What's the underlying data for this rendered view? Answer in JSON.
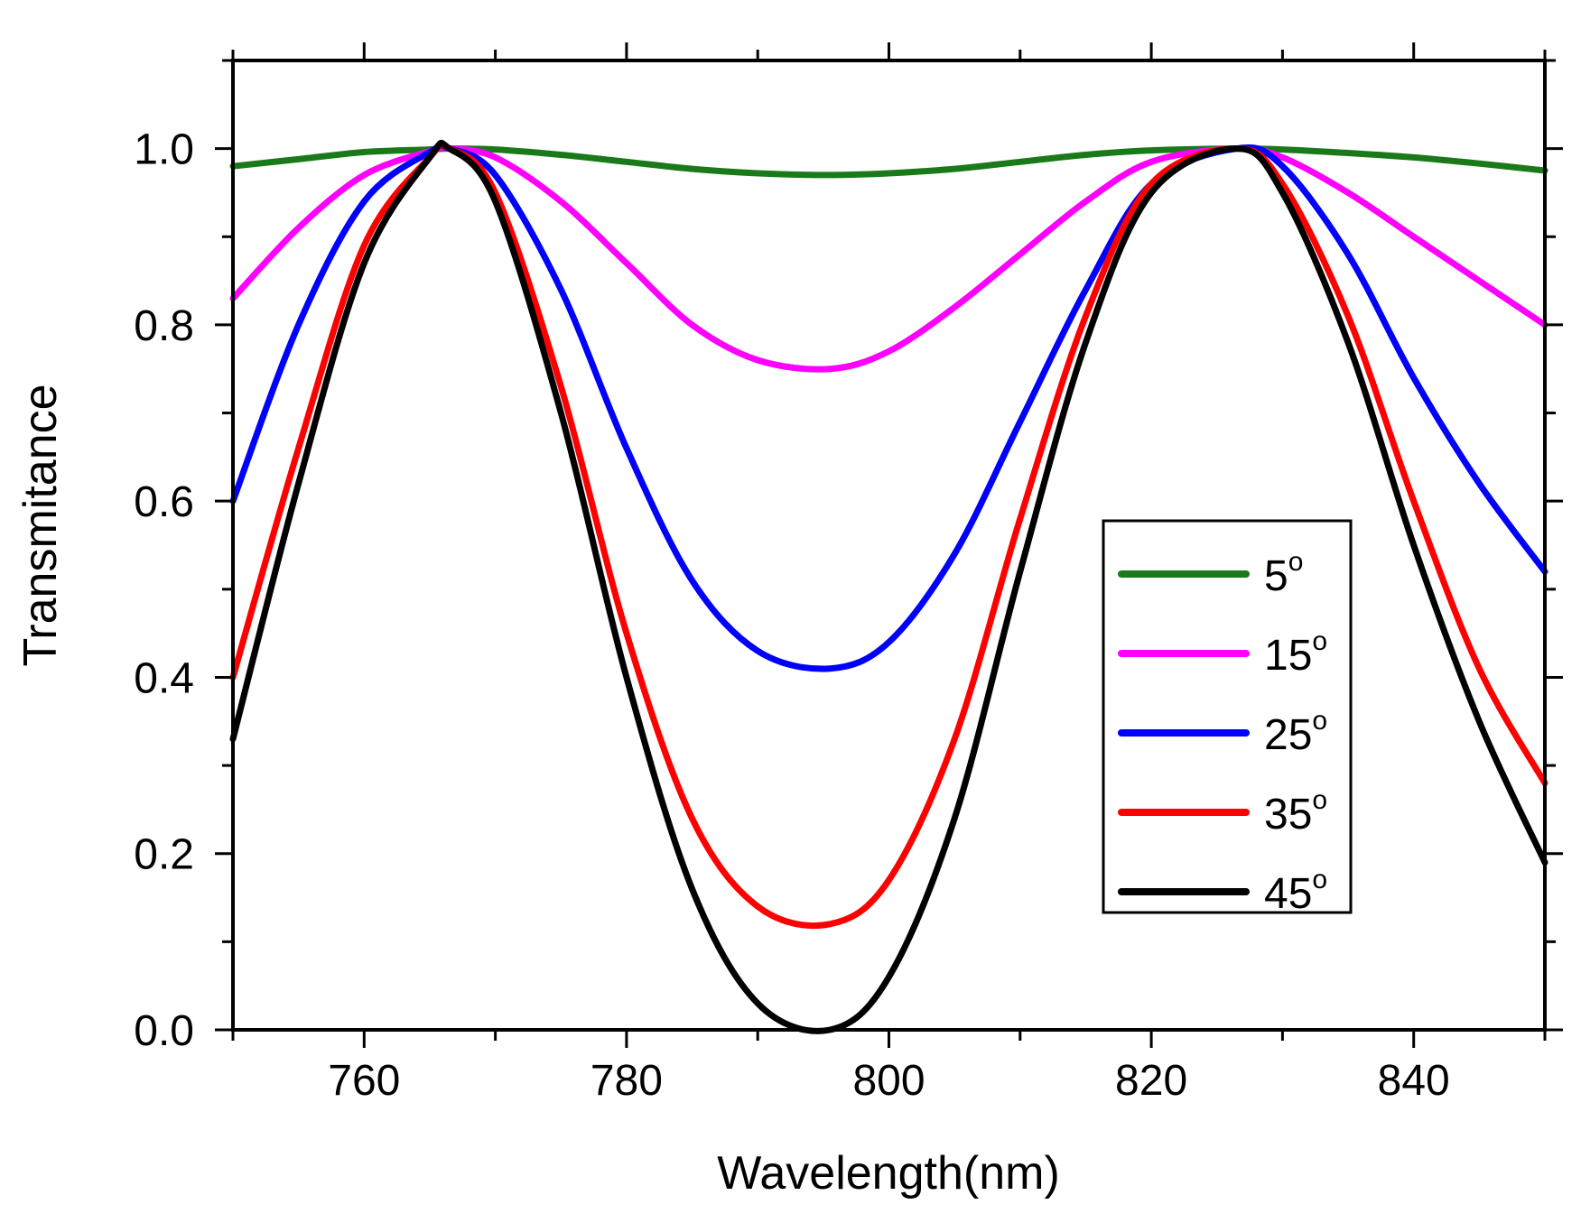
{
  "chart_data": {
    "type": "line",
    "title": "",
    "xlabel": "Wavelength(nm)",
    "ylabel": "Transmitance",
    "xlim": [
      750,
      850
    ],
    "ylim": [
      0.0,
      1.1
    ],
    "x_ticks": [
      760,
      780,
      800,
      820,
      840
    ],
    "x_tick_labels": [
      "760",
      "780",
      "800",
      "820",
      "840"
    ],
    "y_ticks": [
      0.0,
      0.2,
      0.4,
      0.6,
      0.8,
      1.0
    ],
    "y_tick_labels": [
      "0.0",
      "0.2",
      "0.4",
      "0.6",
      "0.8",
      "1.0"
    ],
    "grid": false,
    "legend_position": "right",
    "x": [
      750,
      755,
      760,
      765,
      766.5,
      770,
      775,
      780,
      785,
      790,
      795.5,
      800,
      805,
      810,
      815,
      820,
      826.5,
      830,
      835,
      840,
      845,
      850
    ],
    "series": [
      {
        "name": "5",
        "color": "#1a7a1a",
        "values": [
          0.98,
          0.988,
          0.996,
          0.999,
          1.0,
          0.999,
          0.993,
          0.985,
          0.977,
          0.972,
          0.97,
          0.972,
          0.977,
          0.985,
          0.993,
          0.998,
          1.0,
          0.999,
          0.995,
          0.99,
          0.983,
          0.975
        ]
      },
      {
        "name": "15",
        "color": "#ff00ff",
        "values": [
          0.83,
          0.91,
          0.97,
          0.997,
          1.0,
          0.99,
          0.94,
          0.87,
          0.8,
          0.76,
          0.75,
          0.77,
          0.82,
          0.88,
          0.94,
          0.985,
          1.0,
          0.99,
          0.95,
          0.9,
          0.85,
          0.8
        ]
      },
      {
        "name": "25",
        "color": "#0000ff",
        "values": [
          0.6,
          0.8,
          0.94,
          0.996,
          1.0,
          0.97,
          0.84,
          0.66,
          0.51,
          0.43,
          0.41,
          0.44,
          0.54,
          0.69,
          0.84,
          0.96,
          1.0,
          0.98,
          0.88,
          0.74,
          0.62,
          0.52
        ]
      },
      {
        "name": "35",
        "color": "#ff0000",
        "values": [
          0.4,
          0.66,
          0.89,
          0.99,
          1.0,
          0.95,
          0.73,
          0.45,
          0.24,
          0.14,
          0.12,
          0.17,
          0.33,
          0.58,
          0.81,
          0.96,
          1.0,
          0.96,
          0.81,
          0.6,
          0.41,
          0.28
        ]
      },
      {
        "name": "45",
        "color": "#000000",
        "values": [
          0.33,
          0.62,
          0.87,
          0.99,
          1.0,
          0.94,
          0.7,
          0.4,
          0.16,
          0.03,
          0.0,
          0.06,
          0.24,
          0.52,
          0.78,
          0.95,
          1.0,
          0.95,
          0.78,
          0.55,
          0.35,
          0.19
        ]
      }
    ],
    "legend_entries": [
      {
        "label": "5",
        "suffix": "o"
      },
      {
        "label": "15",
        "suffix": "o"
      },
      {
        "label": "25",
        "suffix": "o"
      },
      {
        "label": "35",
        "suffix": "o"
      },
      {
        "label": "45",
        "suffix": "o"
      }
    ]
  }
}
